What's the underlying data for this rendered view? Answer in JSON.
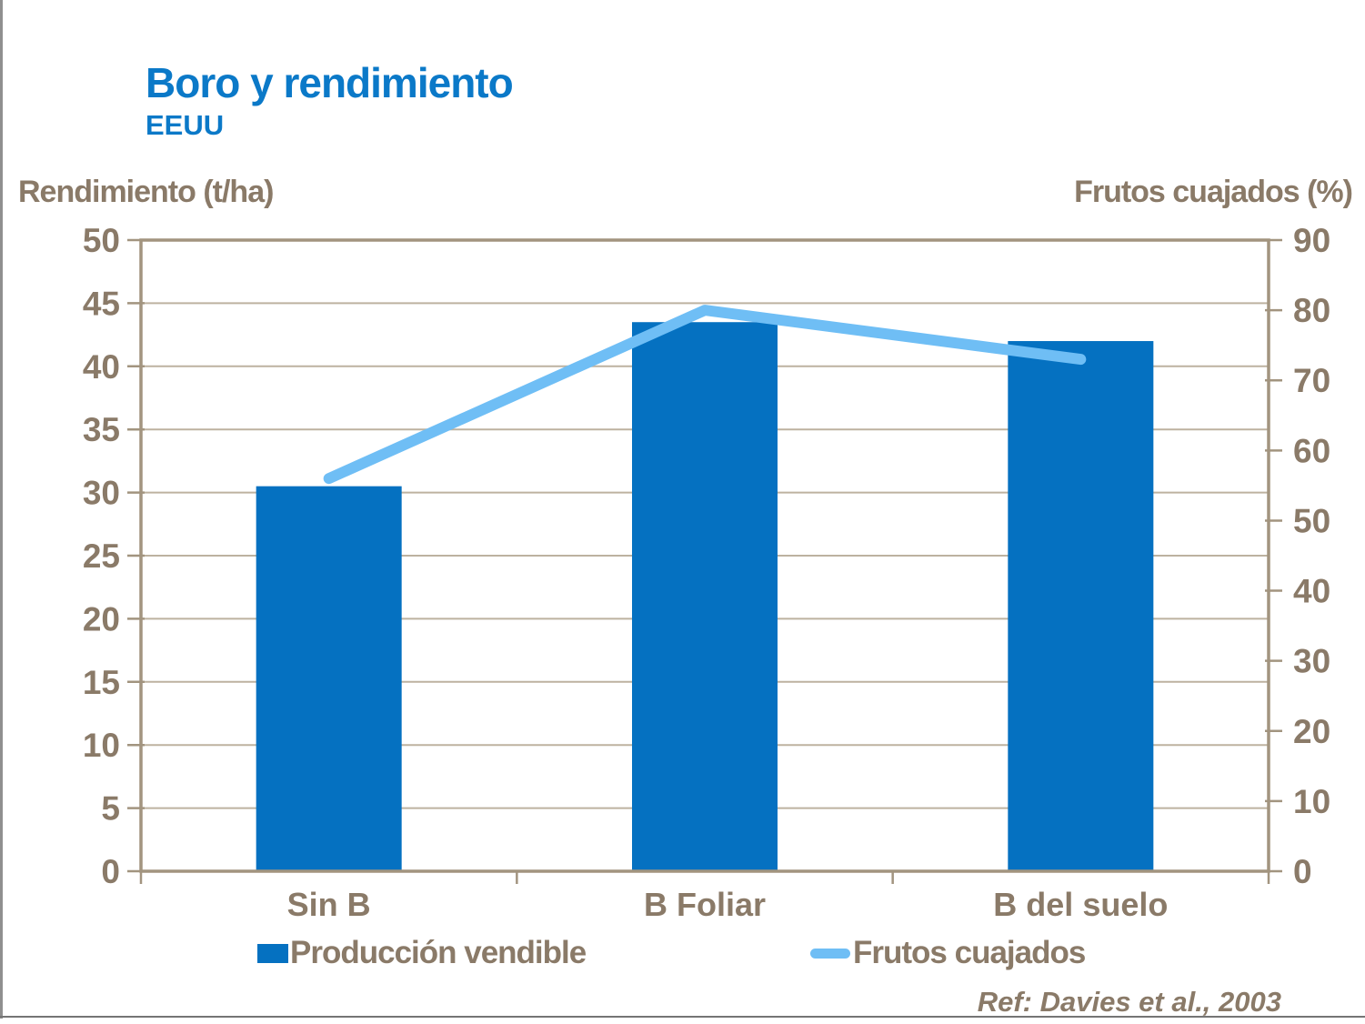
{
  "slide": {
    "title": "Boro y rendimiento",
    "subtitle": "EEUU",
    "left_axis_title": "Rendimiento (t/ha)",
    "right_axis_title": "Frutos cuajados (%)",
    "reference": "Ref: Davies et al., 2003"
  },
  "legend": {
    "bar_label": "Producción vendible",
    "line_label": "Frutos cuajados"
  },
  "colors": {
    "title_blue": "#0b79c8",
    "bar_blue": "#0571c1",
    "line_blue": "#6fbef5",
    "text_brown": "#8a7a68",
    "gridline": "#bdb2a0",
    "plot_border": "#a2947f",
    "tick": "#a2947f"
  },
  "chart_data": {
    "type": "bar+line",
    "title": "Boro y rendimiento (EEUU)",
    "categories": [
      "Sin B",
      "B Foliar",
      "B del suelo"
    ],
    "series": [
      {
        "name": "Producción vendible",
        "type": "bar",
        "axis": "left",
        "values": [
          30.5,
          43.5,
          42
        ]
      },
      {
        "name": "Frutos cuajados",
        "type": "line",
        "axis": "right",
        "values": [
          56,
          80,
          73
        ]
      }
    ],
    "left_axis": {
      "title": "Rendimiento (t/ha)",
      "min": 0,
      "max": 50,
      "step": 5
    },
    "right_axis": {
      "title": "Frutos cuajados (%)",
      "min": 0,
      "max": 90,
      "step": 10
    },
    "grid": true,
    "legend_position": "bottom"
  }
}
